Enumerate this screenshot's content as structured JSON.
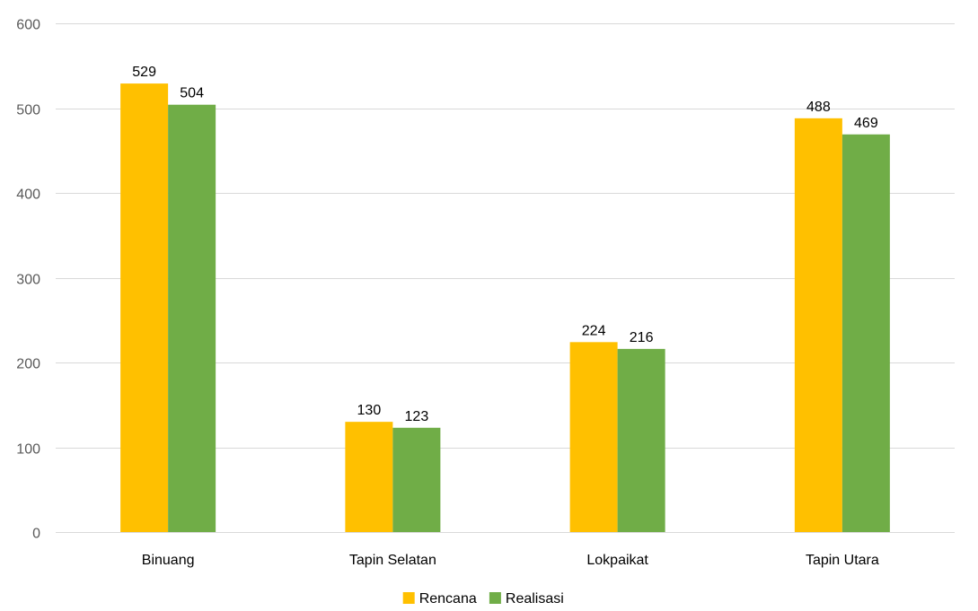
{
  "chart_data": {
    "type": "bar",
    "categories": [
      "Binuang",
      "Tapin Selatan",
      "Lokpaikat",
      "Tapin Utara"
    ],
    "series": [
      {
        "name": "Rencana",
        "values": [
          529,
          130,
          224,
          488
        ],
        "color": "#FFC000"
      },
      {
        "name": "Realisasi",
        "values": [
          504,
          123,
          216,
          469
        ],
        "color": "#70AD47"
      }
    ],
    "yticks": [
      0,
      100,
      200,
      300,
      400,
      500,
      600
    ],
    "ylim": [
      0,
      600
    ],
    "grid": true,
    "legend_position": "bottom",
    "title": "",
    "xlabel": "",
    "ylabel": ""
  }
}
